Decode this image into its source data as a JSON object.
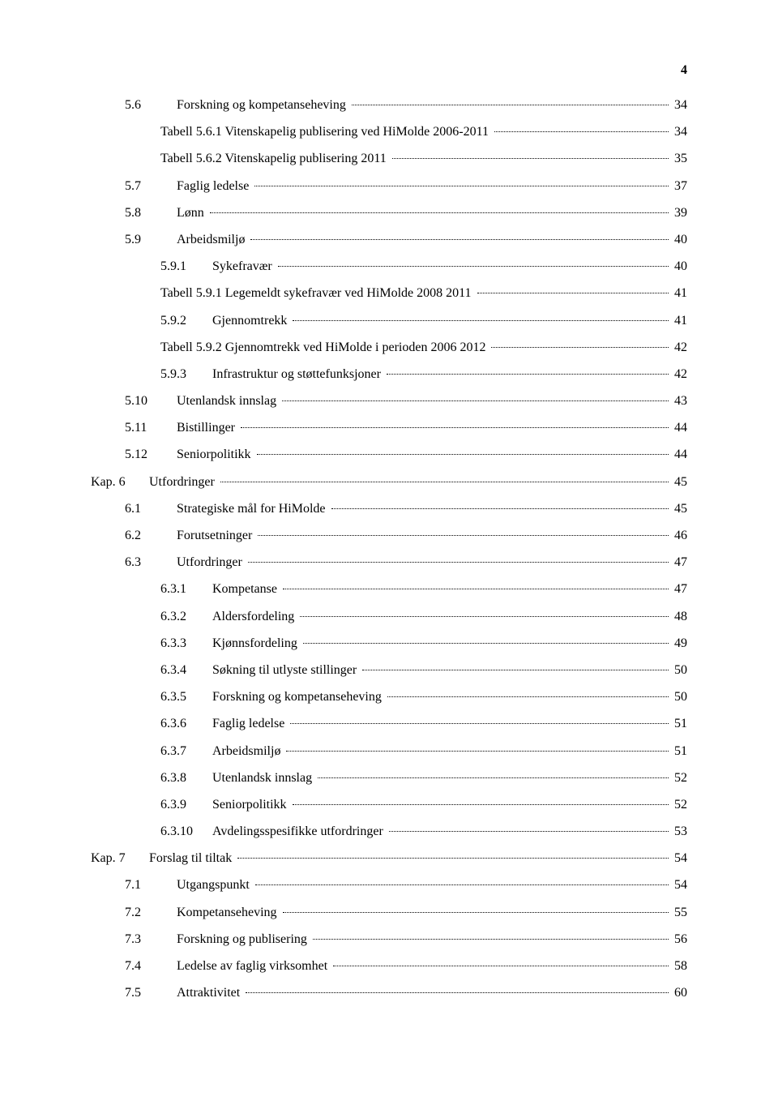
{
  "page_number": "4",
  "background_color": "#ffffff",
  "text_color": "#000000",
  "font_family": "Times New Roman, serif",
  "base_font_size_pt": 12,
  "toc_entries": [
    {
      "level": 2,
      "num": "5.6",
      "title": "Forskning og kompetanseheving",
      "page": "34"
    },
    {
      "level": 3,
      "num": "",
      "title": "Tabell 5.6.1 Vitenskapelig publisering ved HiMolde 2006-2011",
      "page": "34"
    },
    {
      "level": 3,
      "num": "",
      "title": "Tabell 5.6.2 Vitenskapelig publisering 2011",
      "page": "35"
    },
    {
      "level": 2,
      "num": "5.7",
      "title": "Faglig ledelse",
      "page": "37"
    },
    {
      "level": 2,
      "num": "5.8",
      "title": "Lønn",
      "page": "39"
    },
    {
      "level": 2,
      "num": "5.9",
      "title": "Arbeidsmiljø",
      "page": "40"
    },
    {
      "level": 3,
      "num": "5.9.1",
      "title": "Sykefravær",
      "page": "40"
    },
    {
      "level": 3,
      "num": "",
      "title": "Tabell 5.9.1 Legemeldt sykefravær ved HiMolde 2008 2011",
      "page": "41"
    },
    {
      "level": 3,
      "num": "5.9.2",
      "title": "Gjennomtrekk",
      "page": "41"
    },
    {
      "level": 3,
      "num": "",
      "title": "Tabell 5.9.2 Gjennomtrekk ved HiMolde i perioden 2006 2012",
      "page": "42"
    },
    {
      "level": 3,
      "num": "5.9.3",
      "title": "Infrastruktur og støttefunksjoner",
      "page": "42"
    },
    {
      "level": 2,
      "num": "5.10",
      "title": "Utenlandsk innslag",
      "page": "43"
    },
    {
      "level": 2,
      "num": "5.11",
      "title": "Bistillinger",
      "page": "44"
    },
    {
      "level": 2,
      "num": "5.12",
      "title": "Seniorpolitikk",
      "page": "44"
    },
    {
      "level": 1,
      "num": "Kap. 6",
      "title": "Utfordringer",
      "page": "45"
    },
    {
      "level": 2,
      "num": "6.1",
      "title": "Strategiske mål for HiMolde",
      "page": "45"
    },
    {
      "level": 2,
      "num": "6.2",
      "title": "Forutsetninger",
      "page": "46"
    },
    {
      "level": 2,
      "num": "6.3",
      "title": "Utfordringer",
      "page": "47"
    },
    {
      "level": 3,
      "num": "6.3.1",
      "title": "Kompetanse",
      "page": "47"
    },
    {
      "level": 3,
      "num": "6.3.2",
      "title": "Aldersfordeling",
      "page": "48"
    },
    {
      "level": 3,
      "num": "6.3.3",
      "title": "Kjønnsfordeling",
      "page": "49"
    },
    {
      "level": 3,
      "num": "6.3.4",
      "title": "Søkning til utlyste stillinger",
      "page": "50"
    },
    {
      "level": 3,
      "num": "6.3.5",
      "title": "Forskning og kompetanseheving",
      "page": "50"
    },
    {
      "level": 3,
      "num": "6.3.6",
      "title": "Faglig ledelse",
      "page": "51"
    },
    {
      "level": 3,
      "num": "6.3.7",
      "title": "Arbeidsmiljø",
      "page": "51"
    },
    {
      "level": 3,
      "num": "6.3.8",
      "title": "Utenlandsk innslag",
      "page": "52"
    },
    {
      "level": 3,
      "num": "6.3.9",
      "title": "Seniorpolitikk",
      "page": "52"
    },
    {
      "level": 3,
      "num": "6.3.10",
      "title": "Avdelingsspesifikke utfordringer",
      "page": "53"
    },
    {
      "level": 1,
      "num": "Kap. 7",
      "title": "Forslag til tiltak",
      "page": "54"
    },
    {
      "level": 2,
      "num": "7.1",
      "title": "Utgangspunkt",
      "page": "54"
    },
    {
      "level": 2,
      "num": "7.2",
      "title": "Kompetanseheving",
      "page": "55"
    },
    {
      "level": 2,
      "num": "7.3",
      "title": "Forskning og publisering",
      "page": "56"
    },
    {
      "level": 2,
      "num": "7.4",
      "title": "Ledelse av faglig virksomhet",
      "page": "58"
    },
    {
      "level": 2,
      "num": "7.5",
      "title": "Attraktivitet",
      "page": "60"
    }
  ]
}
